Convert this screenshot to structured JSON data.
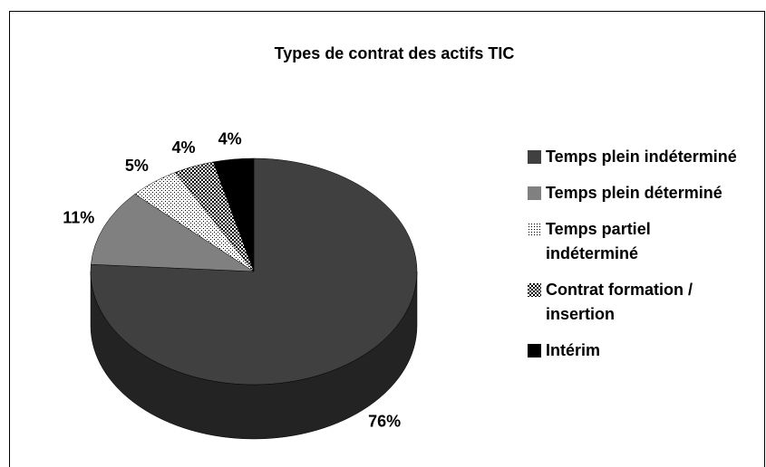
{
  "chart_data": {
    "type": "pie",
    "title": "Types de contrat des actifs TIC",
    "categories": [
      "Temps plein indéterminé",
      "Temps plein déterminé",
      "Temps partiel indéterminé",
      "Contrat formation / insertion",
      "Intérim"
    ],
    "values": [
      76,
      11,
      5,
      4,
      4
    ],
    "value_labels": [
      "76%",
      "11%",
      "5%",
      "4%",
      "4%"
    ],
    "colors": [
      "#404040",
      "#808080",
      "#ffffff",
      "#ffffff",
      "#000000"
    ],
    "patterns": [
      null,
      null,
      "dots",
      "checker",
      null
    ],
    "legend": "right"
  }
}
